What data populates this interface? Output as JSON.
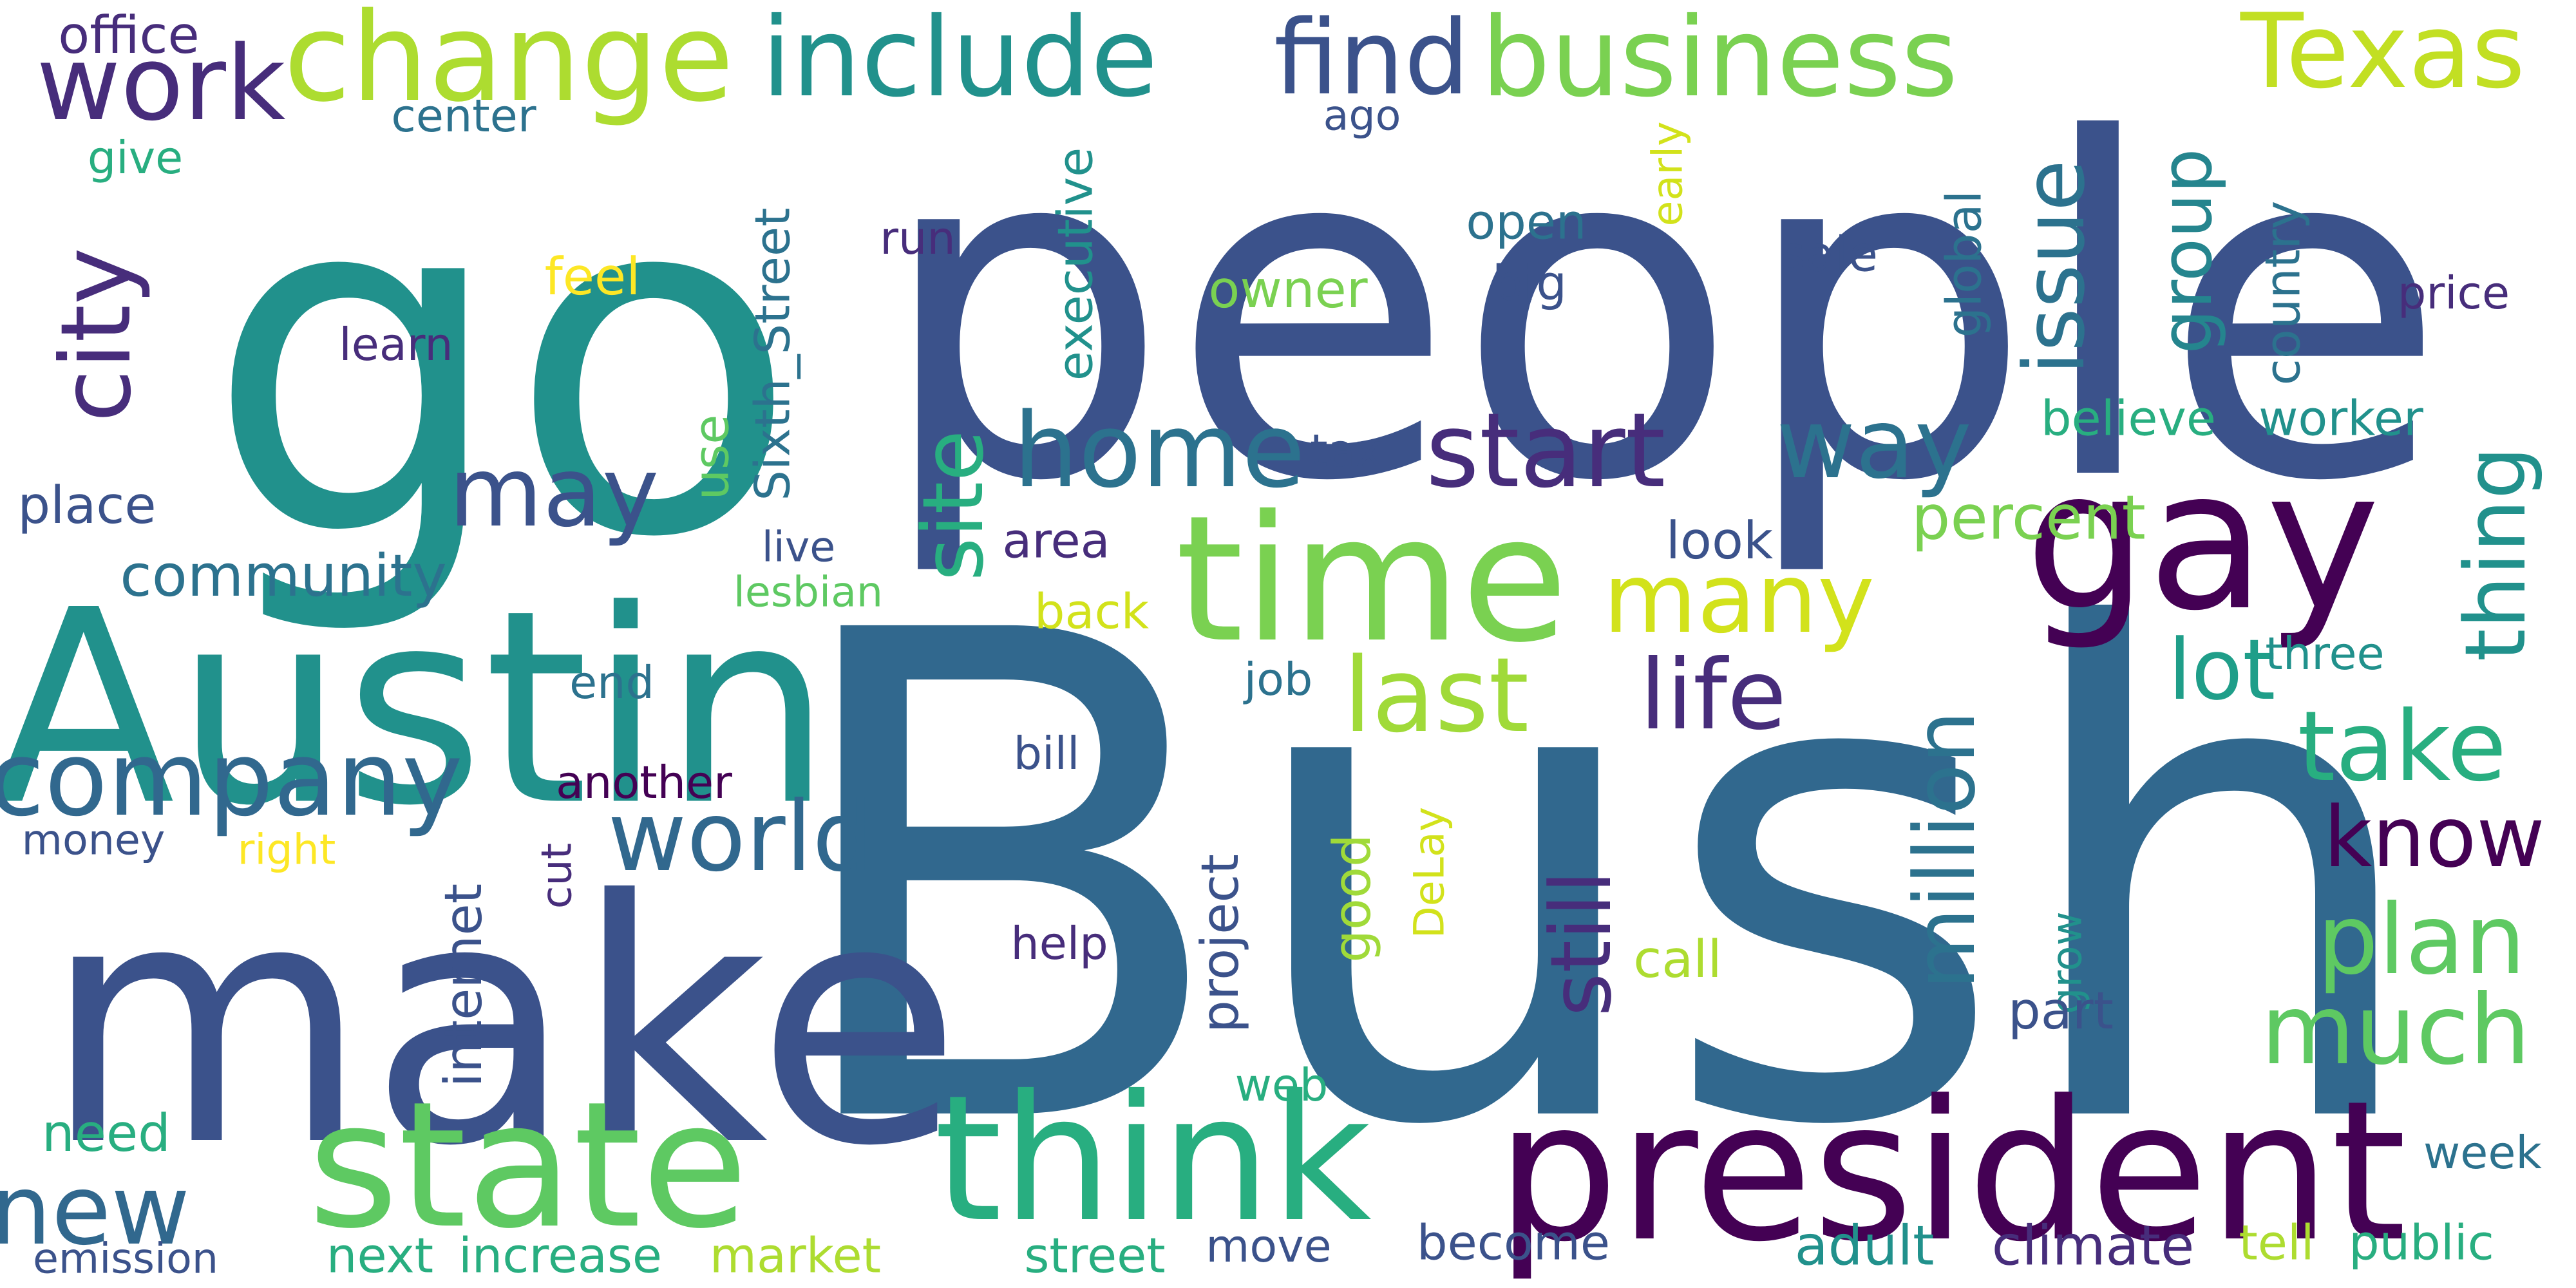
{
  "palette": {
    "dark_purple": "#440154",
    "indigo": "#472d7b",
    "slate": "#3b528b",
    "steel_blue": "#2c728e",
    "teal": "#21918c",
    "sea_green": "#28ae80",
    "green": "#5ec962",
    "lime": "#addc30",
    "yellow": "#fde725"
  },
  "words": [
    {
      "text": "Bush",
      "color": "#31688e"
    },
    {
      "text": "people",
      "color": "#3b528b"
    },
    {
      "text": "go",
      "color": "#21918c"
    },
    {
      "text": "make",
      "color": "#3b528b"
    },
    {
      "text": "Austin",
      "color": "#21918c"
    },
    {
      "text": "president",
      "color": "#440154"
    },
    {
      "text": "gay",
      "color": "#440154"
    },
    {
      "text": "think",
      "color": "#28ae80"
    },
    {
      "text": "state",
      "color": "#5ec962"
    },
    {
      "text": "time",
      "color": "#7ad151"
    },
    {
      "text": "change",
      "color": "#addc30"
    },
    {
      "text": "include",
      "color": "#21918c"
    },
    {
      "text": "business",
      "color": "#7ad151"
    },
    {
      "text": "find",
      "color": "#3b528b"
    },
    {
      "text": "Texas",
      "color": "#c2df23"
    },
    {
      "text": "work",
      "color": "#472d7b"
    },
    {
      "text": "company",
      "color": "#31688e"
    },
    {
      "text": "city",
      "color": "#472d7b"
    },
    {
      "text": "home",
      "color": "#2c728e"
    },
    {
      "text": "start",
      "color": "#472d7b"
    },
    {
      "text": "may",
      "color": "#3b528b"
    },
    {
      "text": "last",
      "color": "#a0da39"
    },
    {
      "text": "many",
      "color": "#d2e21b"
    },
    {
      "text": "life",
      "color": "#472d7b"
    },
    {
      "text": "world",
      "color": "#31688e"
    },
    {
      "text": "new",
      "color": "#31688e"
    },
    {
      "text": "plan",
      "color": "#5ec962"
    },
    {
      "text": "much",
      "color": "#5ec962"
    },
    {
      "text": "take",
      "color": "#28ae80"
    },
    {
      "text": "know",
      "color": "#440154"
    },
    {
      "text": "lot",
      "color": "#1f9e89"
    },
    {
      "text": "way",
      "color": "#2c728e"
    },
    {
      "text": "issue",
      "color": "#2c728e"
    },
    {
      "text": "group",
      "color": "#25858e"
    },
    {
      "text": "site",
      "color": "#28ae80"
    },
    {
      "text": "million",
      "color": "#2c728e"
    },
    {
      "text": "still",
      "color": "#472d7b"
    },
    {
      "text": "thing",
      "color": "#21918c"
    },
    {
      "text": "community",
      "color": "#2c728e"
    },
    {
      "text": "office",
      "color": "#472d7b"
    },
    {
      "text": "center",
      "color": "#2c728e"
    },
    {
      "text": "give",
      "color": "#28ae80"
    },
    {
      "text": "feel",
      "color": "#fde725"
    },
    {
      "text": "learn",
      "color": "#472d7b"
    },
    {
      "text": "run",
      "color": "#472d7b"
    },
    {
      "text": "open",
      "color": "#2c728e"
    },
    {
      "text": "big",
      "color": "#3b528b"
    },
    {
      "text": "sale",
      "color": "#3b528b"
    },
    {
      "text": "price",
      "color": "#472d7b"
    },
    {
      "text": "owner",
      "color": "#7ad151"
    },
    {
      "text": "ago",
      "color": "#3b528b"
    },
    {
      "text": "executive",
      "color": "#21918c"
    },
    {
      "text": "Sixth_Street",
      "color": "#2c728e"
    },
    {
      "text": "early",
      "color": "#d2e21b"
    },
    {
      "text": "global",
      "color": "#2c728e"
    },
    {
      "text": "country",
      "color": "#2c728e"
    },
    {
      "text": "believe",
      "color": "#28ae80"
    },
    {
      "text": "worker",
      "color": "#21918c"
    },
    {
      "text": "place",
      "color": "#3b528b"
    },
    {
      "text": "use",
      "color": "#5ec962"
    },
    {
      "text": "tax",
      "color": "#3b528b"
    },
    {
      "text": "percent",
      "color": "#7ad151"
    },
    {
      "text": "look",
      "color": "#3b528b"
    },
    {
      "text": "live",
      "color": "#3b528b"
    },
    {
      "text": "area",
      "color": "#472d7b"
    },
    {
      "text": "lesbian",
      "color": "#5ec962"
    },
    {
      "text": "back",
      "color": "#d2e21b"
    },
    {
      "text": "three",
      "color": "#21918c"
    },
    {
      "text": "end",
      "color": "#2c728e"
    },
    {
      "text": "job",
      "color": "#2c728e"
    },
    {
      "text": "bill",
      "color": "#3b528b"
    },
    {
      "text": "another",
      "color": "#440154"
    },
    {
      "text": "money",
      "color": "#3b528b"
    },
    {
      "text": "right",
      "color": "#fde725"
    },
    {
      "text": "cut",
      "color": "#472d7b"
    },
    {
      "text": "good",
      "color": "#a0da39"
    },
    {
      "text": "DeLay",
      "color": "#d2e21b"
    },
    {
      "text": "internet",
      "color": "#3b528b"
    },
    {
      "text": "project",
      "color": "#3b528b"
    },
    {
      "text": "help",
      "color": "#472d7b"
    },
    {
      "text": "call",
      "color": "#addc30"
    },
    {
      "text": "grow",
      "color": "#21918c"
    },
    {
      "text": "part",
      "color": "#3b528b"
    },
    {
      "text": "need",
      "color": "#28ae80"
    },
    {
      "text": "web",
      "color": "#28ae80"
    },
    {
      "text": "emission",
      "color": "#3b528b"
    },
    {
      "text": "next",
      "color": "#28ae80"
    },
    {
      "text": "increase",
      "color": "#28ae80"
    },
    {
      "text": "market",
      "color": "#addc30"
    },
    {
      "text": "street",
      "color": "#28ae80"
    },
    {
      "text": "move",
      "color": "#3b528b"
    },
    {
      "text": "become",
      "color": "#3b528b"
    },
    {
      "text": "adult",
      "color": "#21918c"
    },
    {
      "text": "climate",
      "color": "#472d7b"
    },
    {
      "text": "tell",
      "color": "#addc30"
    },
    {
      "text": "public",
      "color": "#28ae80"
    },
    {
      "text": "week",
      "color": "#2c728e"
    }
  ]
}
